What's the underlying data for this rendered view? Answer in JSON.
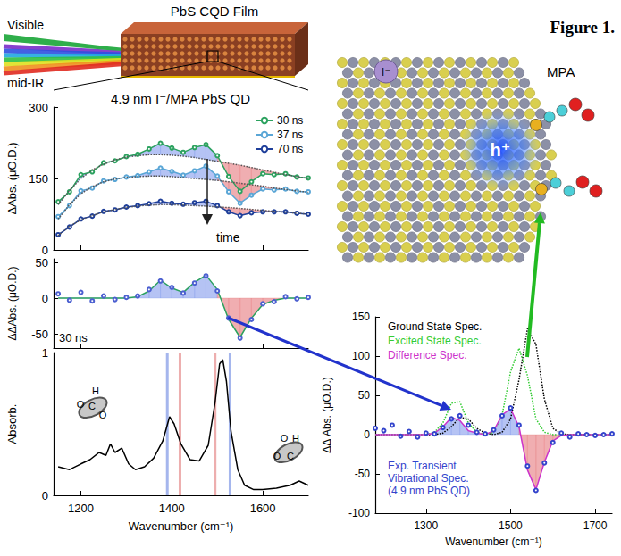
{
  "figure_label": "Figure 1.",
  "schematic": {
    "beams": [
      "Visible",
      "mid-IR"
    ],
    "film": "PbS CQD Film",
    "ligand": "MPA",
    "ion": "I⁻",
    "hole": "h⁺"
  },
  "chart_data": [
    {
      "type": "line",
      "title": "4.9 nm I⁻/MPA PbS QD",
      "y_label": "ΔAbs. (μO.D.)",
      "x": [
        1150,
        1175,
        1200,
        1225,
        1250,
        1275,
        1300,
        1325,
        1350,
        1375,
        1400,
        1425,
        1450,
        1475,
        1500,
        1525,
        1550,
        1575,
        1600,
        1625,
        1650,
        1675,
        1700
      ],
      "series": [
        {
          "name": "30 ns",
          "color": "#2ca25f",
          "marker": "circle",
          "line_style": "solid",
          "values": [
            101,
            122,
            158,
            164,
            183,
            187,
            196,
            201,
            212,
            224,
            214,
            205,
            215,
            221,
            198,
            154,
            123,
            143,
            160,
            158,
            160,
            153,
            151
          ],
          "fit": [
            95,
            125,
            150,
            168,
            180,
            189,
            195,
            198,
            200,
            200,
            199,
            197,
            194,
            190,
            186,
            182,
            178,
            173,
            168,
            163,
            158,
            154,
            150
          ]
        },
        {
          "name": "37 ns",
          "color": "#5aa6d6",
          "marker": "circle",
          "line_style": "solid",
          "values": [
            70,
            93,
            124,
            130,
            145,
            148,
            153,
            156,
            164,
            172,
            165,
            157,
            166,
            176,
            155,
            122,
            98,
            115,
            128,
            126,
            128,
            123,
            122
          ],
          "fit": [
            65,
            95,
            118,
            133,
            143,
            149,
            152,
            154,
            155,
            155,
            154,
            152,
            150,
            148,
            146,
            143,
            140,
            137,
            134,
            130,
            127,
            124,
            121
          ]
        },
        {
          "name": "70 ns",
          "color": "#1f3f9a",
          "marker": "circle",
          "line_style": "solid",
          "values": [
            32,
            48,
            65,
            71,
            81,
            84,
            90,
            93,
            97,
            102,
            98,
            96,
            99,
            102,
            93,
            80,
            72,
            78,
            80,
            80,
            80,
            77,
            75
          ],
          "fit": [
            30,
            50,
            63,
            72,
            80,
            85,
            89,
            92,
            94,
            95,
            95,
            94,
            93,
            92,
            90,
            89,
            87,
            85,
            83,
            81,
            79,
            77,
            75
          ]
        }
      ],
      "xlim": [
        1140,
        1700
      ],
      "xticks": [
        1200,
        1400,
        1600
      ],
      "ylim": [
        0,
        300
      ],
      "yticks": [
        0,
        150,
        300
      ],
      "tick_labels": "y",
      "grid": false,
      "legend": "upper right",
      "annotations": [
        "time"
      ]
    },
    {
      "type": "line",
      "y_label": "ΔΔAbs. (μO.D.)",
      "x": [
        1150,
        1175,
        1200,
        1225,
        1250,
        1275,
        1300,
        1325,
        1350,
        1375,
        1400,
        1425,
        1450,
        1475,
        1500,
        1525,
        1550,
        1575,
        1600,
        1625,
        1650,
        1675,
        1700
      ],
      "series": [
        {
          "color": "#4b5fd0",
          "marker": "circle",
          "line_style": "none",
          "values": [
            6,
            -3,
            8,
            -4,
            3,
            -2,
            1,
            3,
            12,
            24,
            15,
            7,
            21,
            31,
            10,
            -28,
            -56,
            -30,
            -8,
            -5,
            2,
            -1,
            1
          ]
        },
        {
          "color": "#2ca25f",
          "type": "area",
          "line_style": "solid",
          "values": [
            0,
            0,
            0,
            0,
            0,
            0,
            0,
            2,
            10,
            25,
            14,
            8,
            22,
            32,
            12,
            -30,
            -55,
            -28,
            -9,
            -3,
            0,
            0,
            0
          ]
        }
      ],
      "xlim": [
        1140,
        1700
      ],
      "xticks": [
        1200,
        1400,
        1600
      ],
      "ylim": [
        -70,
        55
      ],
      "yticks": [
        -50,
        0,
        50
      ],
      "tick_labels": "y",
      "grid": false,
      "annotations": [
        "30 ns"
      ]
    },
    {
      "type": "line",
      "y_label": "Absorb.",
      "x_label": "Wavenumber (cm⁻¹)",
      "color": "#000000",
      "x": [
        1150,
        1175,
        1200,
        1220,
        1240,
        1255,
        1265,
        1275,
        1290,
        1305,
        1320,
        1340,
        1360,
        1380,
        1395,
        1405,
        1420,
        1440,
        1460,
        1480,
        1495,
        1505,
        1512,
        1520,
        1530,
        1545,
        1560,
        1580,
        1600,
        1630,
        1660,
        1680,
        1700
      ],
      "values": [
        0.2,
        0.18,
        0.22,
        0.25,
        0.3,
        0.28,
        0.36,
        0.3,
        0.33,
        0.22,
        0.18,
        0.2,
        0.26,
        0.38,
        0.55,
        0.5,
        0.36,
        0.25,
        0.24,
        0.35,
        0.65,
        0.92,
        0.95,
        0.8,
        0.45,
        0.18,
        0.07,
        0.04,
        0.04,
        0.05,
        0.07,
        0.1,
        0.07
      ],
      "vlines": [
        {
          "x": 1390,
          "color": "#8fa4e8"
        },
        {
          "x": 1418,
          "color": "#e89a9a"
        },
        {
          "x": 1495,
          "color": "#e89a9a"
        },
        {
          "x": 1528,
          "color": "#8fa4e8"
        }
      ],
      "structures": [
        [
          "H",
          "O",
          "C",
          "O"
        ],
        [
          "H",
          "O",
          "O",
          "C"
        ]
      ],
      "xlim": [
        1140,
        1700
      ],
      "xticks": [
        1200,
        1400,
        1600
      ],
      "ylim": [
        0,
        1
      ],
      "yticks": [
        0,
        1
      ],
      "grid": false
    },
    {
      "type": "line",
      "y_label": "ΔΔ Abs. (μO.D.)",
      "x_label": "Wavenumber (cm⁻¹)",
      "x": [
        1180,
        1200,
        1220,
        1240,
        1260,
        1280,
        1300,
        1320,
        1340,
        1360,
        1380,
        1400,
        1420,
        1440,
        1460,
        1480,
        1500,
        1520,
        1540,
        1560,
        1580,
        1600,
        1620,
        1640,
        1660,
        1680,
        1700,
        1720,
        1740
      ],
      "series": [
        {
          "name": "Ground State Spec.",
          "color": "#000000",
          "line_style": "dotted",
          "values": [
            0,
            0,
            0,
            0,
            0,
            0,
            0,
            0,
            2,
            10,
            22,
            20,
            8,
            2,
            0,
            3,
            20,
            70,
            135,
            115,
            45,
            8,
            1,
            0,
            0,
            0,
            0,
            0,
            0
          ]
        },
        {
          "name": "Excited State Spec.",
          "color": "#33cc33",
          "line_style": "dotted",
          "values": [
            0,
            0,
            0,
            0,
            0,
            0,
            0,
            3,
            15,
            40,
            42,
            15,
            3,
            0,
            3,
            25,
            80,
            110,
            75,
            20,
            3,
            0,
            0,
            0,
            0,
            0,
            0,
            0,
            0
          ]
        },
        {
          "name": "Difference Spec.",
          "color": "#cc33cc",
          "type": "area",
          "line_style": "solid",
          "values": [
            0,
            0,
            0,
            0,
            0,
            0,
            0,
            2,
            10,
            22,
            18,
            5,
            2,
            0,
            5,
            25,
            33,
            10,
            -45,
            -70,
            -35,
            -8,
            -1,
            0,
            0,
            0,
            0,
            0,
            0
          ]
        },
        {
          "name": "Exp. Transient Vibrational Spec. (4.9 nm PbS QD)",
          "color": "#3344cc",
          "marker": "circle",
          "line_style": "none",
          "values": [
            8,
            5,
            12,
            -2,
            4,
            -3,
            2,
            1,
            9,
            20,
            24,
            12,
            3,
            1,
            6,
            24,
            34,
            12,
            -40,
            -71,
            -36,
            -10,
            2,
            -3,
            1,
            0,
            -1,
            0,
            1
          ]
        }
      ],
      "xlim": [
        1180,
        1740
      ],
      "xticks": [
        1300,
        1500,
        1700
      ],
      "ylim": [
        -100,
        150
      ],
      "yticks": [
        -100,
        -50,
        0,
        50,
        100,
        150
      ],
      "grid": false
    }
  ]
}
